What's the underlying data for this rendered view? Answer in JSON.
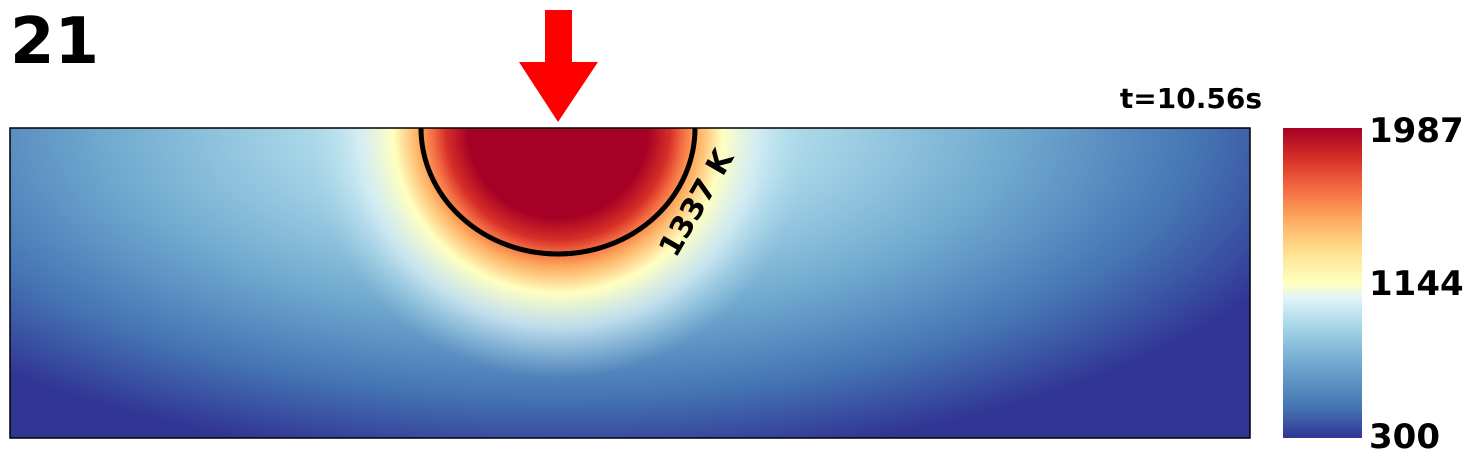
{
  "frame": "21",
  "chart_data": {
    "type": "heatmap",
    "title": "t=10.56s",
    "colorbar": {
      "clim": [
        300,
        1987
      ],
      "ticks": [
        300,
        1144,
        1987
      ]
    },
    "contour": {
      "value": 1337,
      "label": "1337 K"
    }
  }
}
